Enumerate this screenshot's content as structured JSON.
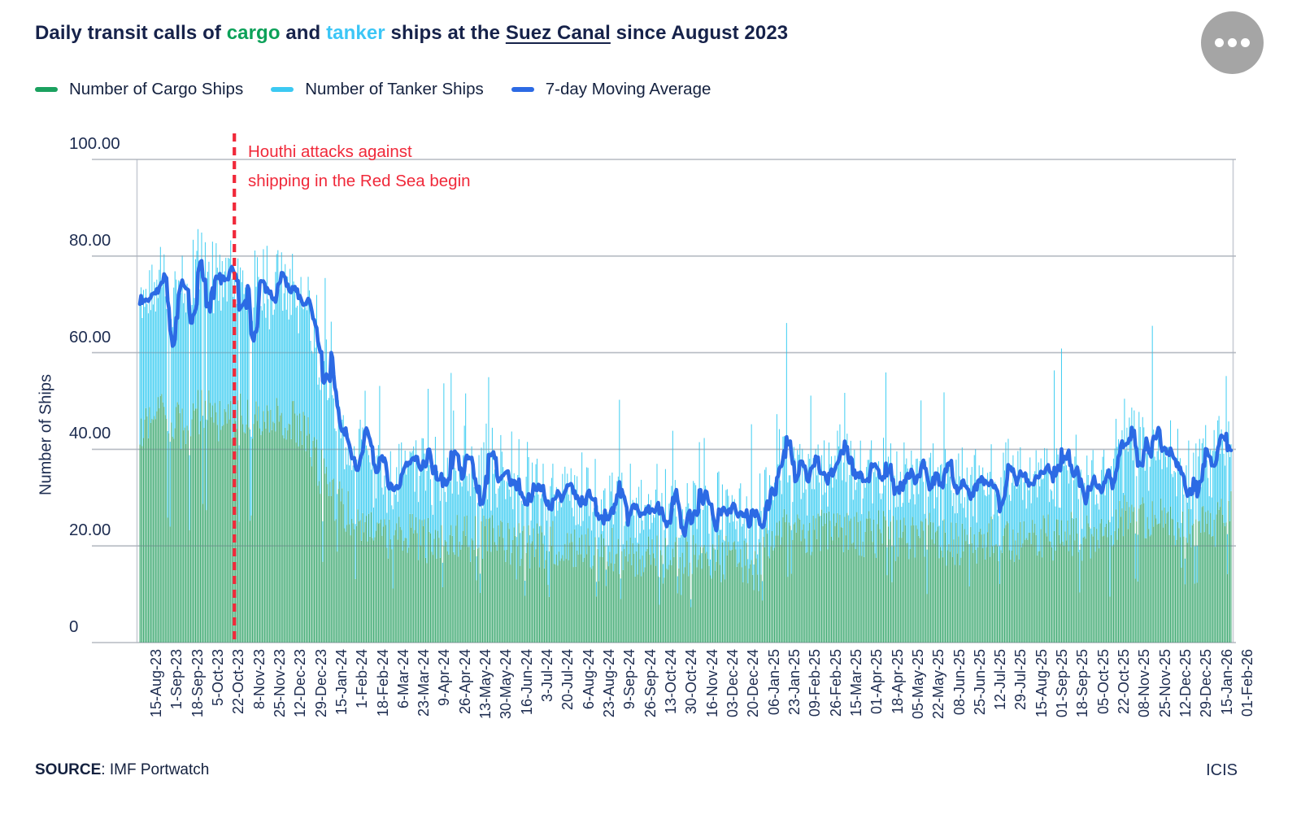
{
  "header": {
    "title_segments": [
      {
        "text": "Daily transit calls of ",
        "style": "navy"
      },
      {
        "text": "cargo",
        "style": "green"
      },
      {
        "text": " and ",
        "style": "navy"
      },
      {
        "text": "tanker",
        "style": "cyan"
      },
      {
        "text": " ships at the ",
        "style": "navy"
      },
      {
        "text": "Suez Canal",
        "style": "underline"
      },
      {
        "text": " since August 2023",
        "style": "navy"
      }
    ],
    "menu_icon": "ellipsis-icon"
  },
  "legend": [
    {
      "label": "Number of Cargo Ships",
      "color": "#1ba15f"
    },
    {
      "label": "Number of Tanker Ships",
      "color": "#3cc9f2"
    },
    {
      "label": "7-day Moving Average",
      "color": "#2c6ae4"
    }
  ],
  "footer": {
    "source_label": "SOURCE",
    "source_value": ": IMF Portwatch",
    "brand": "ICIS"
  },
  "chart_data": {
    "type": "bar",
    "subtype": "stacked-daily-bars-with-moving-average-line",
    "title": "Daily transit calls of cargo and tanker ships at the Suez Canal since August 2023",
    "ylabel": "Number of Ships",
    "xlabel": "",
    "ylim": [
      0,
      100
    ],
    "y_ticks": [
      {
        "value": 100,
        "label": "100.00"
      },
      {
        "value": 80,
        "label": "80.00"
      },
      {
        "value": 60,
        "label": "60.00"
      },
      {
        "value": 40,
        "label": "40.00"
      },
      {
        "value": 20,
        "label": "20.00"
      },
      {
        "value": 0,
        "label": "0"
      }
    ],
    "grid": true,
    "legend_position": "top-left",
    "x_tick_labels": [
      "15-Aug-23",
      "1-Sep-23",
      "18-Sep-23",
      "5-Oct-23",
      "22-Oct-23",
      "8-Nov-23",
      "25-Nov-23",
      "12-Dec-23",
      "29-Dec-23",
      "15-Jan-24",
      "1-Feb-24",
      "18-Feb-24",
      "6-Mar-24",
      "23-Mar-24",
      "9-Apr-24",
      "26-Apr-24",
      "13-May-24",
      "30-May-24",
      "16-Jun-24",
      "3-Jul-24",
      "20-Jul-24",
      "6-Aug-24",
      "23-Aug-24",
      "9-Sep-24",
      "26-Sep-24",
      "13-Oct-24",
      "30-Oct-24",
      "16-Nov-24",
      "03-Dec-24",
      "20-Dec-24",
      "06-Jan-25",
      "23-Jan-25",
      "09-Feb-25",
      "26-Feb-25",
      "15-Mar-25",
      "01-Apr-25",
      "18-Apr-25",
      "05-May-25",
      "22-May-25",
      "08-Jun-25",
      "25-Jun-25",
      "12-Jul-25",
      "29-Jul-25",
      "15-Aug-25",
      "01-Sep-25",
      "18-Sep-25",
      "05-Oct-25",
      "22-Oct-25",
      "08-Nov-25",
      "25-Nov-25",
      "12-Dec-25",
      "29-Dec-25",
      "15-Jan-26",
      "01-Feb-26"
    ],
    "days_per_tick": 17,
    "series": [
      {
        "name": "Number of Cargo Ships",
        "kind": "bar-stack-bottom",
        "color": "#47ad78",
        "avg_at_ticks": [
          44,
          47,
          45,
          48,
          46,
          47,
          45,
          46,
          44,
          33,
          27,
          24,
          21,
          23,
          21,
          22,
          21.5,
          22,
          20.5,
          19.5,
          20.5,
          20,
          20,
          19,
          18.5,
          18,
          18.5,
          17.5,
          17.5,
          17,
          15,
          24.5,
          21.5,
          22.5,
          23,
          22,
          22.5,
          21.5,
          23,
          21,
          20.5,
          21.5,
          21,
          22,
          21.5,
          22.5,
          21.5,
          21,
          27.5,
          26,
          25,
          23,
          24,
          27
        ]
      },
      {
        "name": "Number of Tanker Ships",
        "kind": "bar-stack-top",
        "color": "#45cff2",
        "avg_at_ticks": [
          24.5,
          27,
          26.5,
          29,
          28.5,
          29,
          27.5,
          28,
          27,
          21,
          17,
          14,
          12,
          14,
          12.5,
          13.5,
          12.5,
          13.5,
          12,
          11,
          12,
          12,
          11.5,
          10.5,
          10,
          9.5,
          10.5,
          9,
          9.5,
          9,
          7.5,
          14,
          12,
          12.5,
          12.5,
          12.5,
          12.5,
          12,
          12.5,
          11.5,
          11,
          11.5,
          11,
          12,
          12,
          12,
          11.5,
          11.5,
          15.5,
          14,
          13.5,
          12,
          13,
          14.5
        ]
      },
      {
        "name": "7-day Moving Average",
        "kind": "line",
        "color": "#2c6ae4",
        "values_at_ticks": [
          68.5,
          74,
          71.5,
          77,
          74.5,
          76,
          72.5,
          74,
          71,
          54,
          44,
          38,
          33,
          37,
          33.5,
          35.5,
          34,
          35.5,
          32.5,
          30.5,
          32.5,
          32,
          31.5,
          29.5,
          28.5,
          27.5,
          29,
          26.5,
          27,
          26,
          22.5,
          38.5,
          33.5,
          35,
          35.5,
          34.5,
          35,
          33.5,
          35.5,
          32.5,
          31.5,
          33,
          32,
          34,
          33.5,
          34.5,
          33,
          32.5,
          43,
          40,
          38.5,
          35,
          37,
          41.5
        ]
      }
    ],
    "daily_variation": {
      "seed": 9,
      "cargo_sd": 5,
      "tanker_sd": 6.5,
      "spike_prob": 0.045,
      "spike_min": 8,
      "spike_max": 22,
      "slump_prob": 0.05,
      "slump_factor": 0.55
    },
    "annotation": {
      "lines": [
        "Houthi attacks against",
        "shipping in the Red Sea begin"
      ],
      "day_index": 78,
      "line_color": "#f0293a",
      "line_style": "dashed-vertical"
    }
  }
}
